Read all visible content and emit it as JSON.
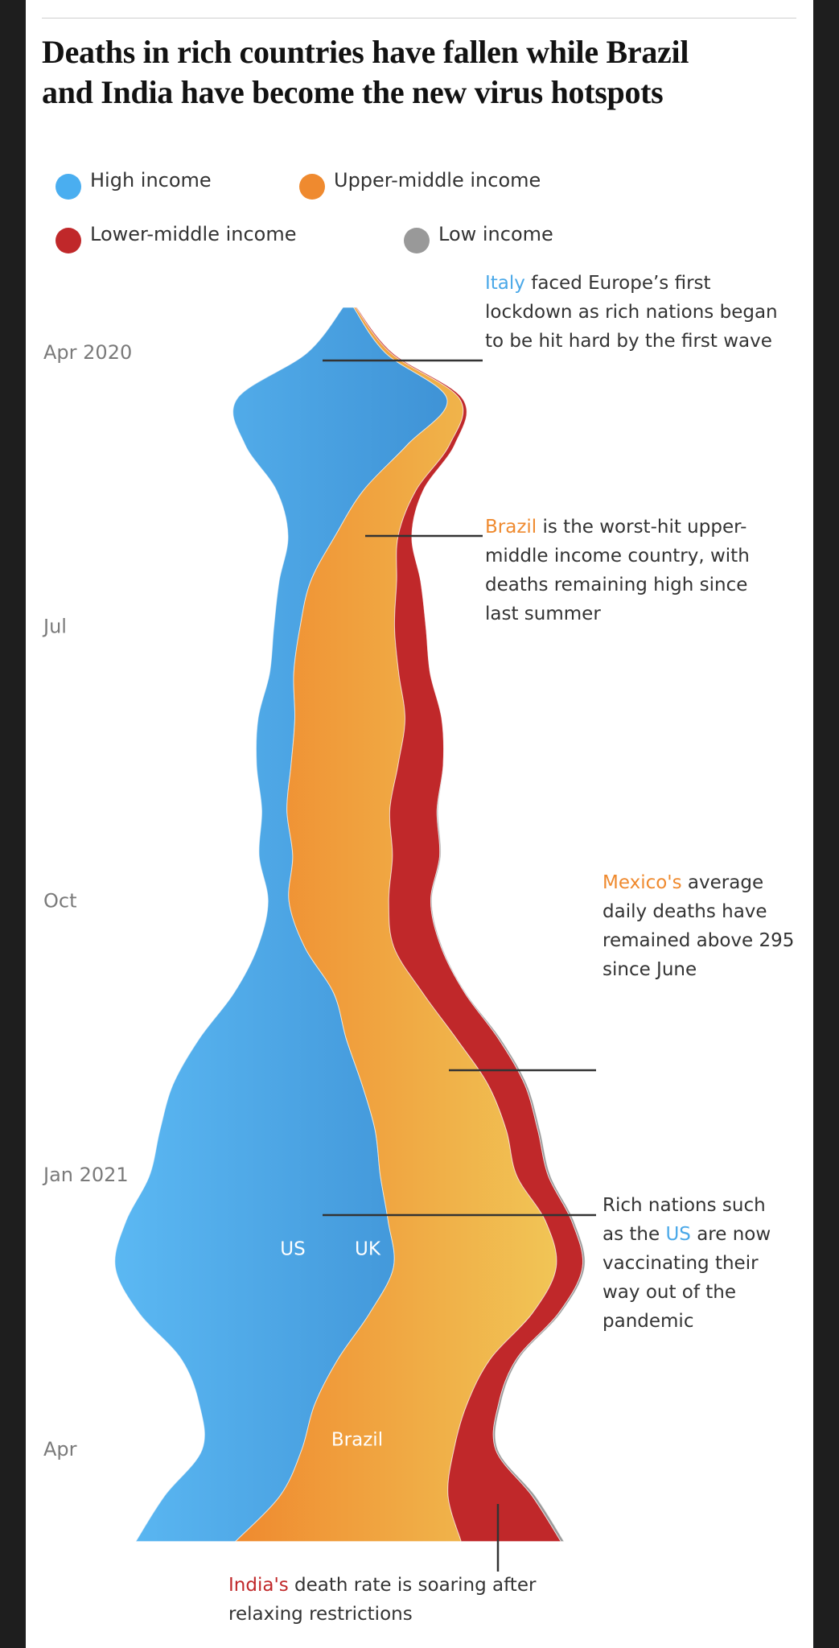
{
  "chart_data": {
    "type": "streamgraph",
    "orientation": "vertical",
    "title": [
      "Deaths in rich countries have fallen while Brazil",
      "and India have become the new virus hotspots"
    ],
    "legend_position": "top",
    "categories": [
      null,
      "Apr 2020",
      null,
      null,
      null,
      null,
      null,
      "Jul",
      null,
      null,
      null,
      null,
      null,
      "Oct",
      null,
      null,
      null,
      null,
      null,
      "Jan 2021",
      null,
      null,
      null,
      null,
      null,
      "Apr",
      null,
      null
    ],
    "series": [
      {
        "name": "High income",
        "color": "#4aaef0",
        "fill_gradient": [
          "#5bb8f3",
          "#3f93d6"
        ],
        "values": [
          10,
          75,
          200,
          155,
          83,
          45,
          30,
          25,
          23,
          35,
          33,
          24,
          32,
          20,
          45,
          95,
          140,
          180,
          205,
          220,
          250,
          265,
          220,
          150,
          110,
          95,
          110,
          95
        ]
      },
      {
        "name": "Upper-middle income",
        "color": "#ef8a2f",
        "fill_gradient": [
          "#ef8a2f",
          "#f1c556"
        ],
        "values": [
          2,
          5,
          12,
          40,
          50,
          60,
          82,
          90,
          100,
          105,
          102,
          98,
          95,
          95,
          85,
          85,
          105,
          120,
          125,
          130,
          150,
          155,
          155,
          145,
          145,
          145,
          160,
          215
        ]
      },
      {
        "name": "Lower-middle income",
        "color": "#c0282a",
        "values": [
          1,
          2,
          3,
          5,
          7,
          13,
          23,
          30,
          30,
          35,
          43,
          45,
          45,
          40,
          45,
          40,
          40,
          35,
          30,
          30,
          25,
          25,
          25,
          25,
          30,
          40,
          80,
          95
        ]
      },
      {
        "name": "Low income",
        "color": "#999999",
        "values": [
          0,
          0,
          0,
          0,
          0,
          0,
          0,
          0,
          0,
          0,
          0,
          1,
          1,
          1,
          1,
          1,
          2,
          2,
          2,
          2,
          2,
          2,
          2,
          2,
          2,
          2,
          3,
          3
        ]
      }
    ],
    "inline_labels": [
      "US",
      "UK",
      "Brazil"
    ],
    "annotations": [
      {
        "lines": [
          [
            {
              "text": "Italy",
              "color": "#4aa8e8"
            },
            {
              "text": " faced Europe’s first"
            }
          ],
          [
            {
              "text": "lockdown as rich nations began"
            }
          ],
          [
            {
              "text": "to be hit hard by the first wave"
            }
          ]
        ]
      },
      {
        "lines": [
          [
            {
              "text": "Brazil",
              "color": "#ef8a2f"
            },
            {
              "text": " is the worst-hit upper-"
            }
          ],
          [
            {
              "text": "middle income country, with"
            }
          ],
          [
            {
              "text": "deaths remaining high since"
            }
          ],
          [
            {
              "text": "last summer"
            }
          ]
        ]
      },
      {
        "lines": [
          [
            {
              "text": "Mexico's",
              "color": "#ef8a2f"
            },
            {
              "text": " average"
            }
          ],
          [
            {
              "text": "daily deaths have"
            }
          ],
          [
            {
              "text": "remained above 295"
            }
          ],
          [
            {
              "text": "since June"
            }
          ]
        ]
      },
      {
        "lines": [
          [
            {
              "text": "Rich nations such"
            }
          ],
          [
            {
              "text": "as the "
            },
            {
              "text": "US",
              "color": "#4aa8e8"
            },
            {
              "text": " are now"
            }
          ],
          [
            {
              "text": "vaccinating their"
            }
          ],
          [
            {
              "text": "way out of the"
            }
          ],
          [
            {
              "text": "pandemic"
            }
          ]
        ]
      },
      {
        "lines": [
          [
            {
              "text": "India's",
              "color": "#c0282a"
            },
            {
              "text": " death rate is soaring after"
            }
          ],
          [
            {
              "text": "relaxing restrictions"
            }
          ]
        ]
      }
    ]
  }
}
